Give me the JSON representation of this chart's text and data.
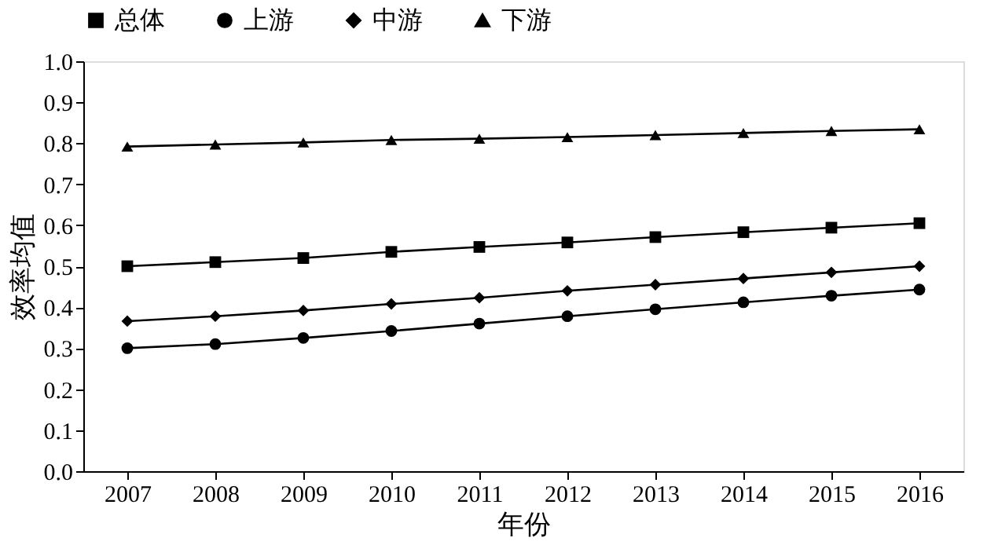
{
  "chart_data": {
    "type": "line",
    "xlabel": "年份",
    "ylabel": "效率均值",
    "categories": [
      "2007",
      "2008",
      "2009",
      "2010",
      "2011",
      "2012",
      "2013",
      "2014",
      "2015",
      "2016"
    ],
    "series": [
      {
        "name": "总体",
        "color": "#000000",
        "marker": "square",
        "values": [
          0.5,
          0.51,
          0.52,
          0.535,
          0.547,
          0.558,
          0.571,
          0.583,
          0.594,
          0.605
        ]
      },
      {
        "name": "上游",
        "color": "#000000",
        "marker": "circle",
        "values": [
          0.3,
          0.31,
          0.325,
          0.342,
          0.36,
          0.378,
          0.395,
          0.412,
          0.428,
          0.443
        ]
      },
      {
        "name": "中游",
        "color": "#000000",
        "marker": "diamond",
        "values": [
          0.366,
          0.378,
          0.392,
          0.408,
          0.423,
          0.44,
          0.455,
          0.47,
          0.485,
          0.5
        ]
      },
      {
        "name": "下游",
        "color": "#000000",
        "marker": "triangle",
        "values": [
          0.792,
          0.797,
          0.802,
          0.808,
          0.811,
          0.815,
          0.82,
          0.825,
          0.83,
          0.834
        ]
      }
    ],
    "ylim": [
      0,
      1
    ],
    "yticks": [
      {
        "value": 0,
        "label": "0.0"
      },
      0.1,
      0.2,
      0.3,
      0.4,
      0.5,
      0.6,
      0.7,
      0.8,
      0.9,
      {
        "value": 1,
        "label": "1.0"
      }
    ],
    "grid": false,
    "legend": "top",
    "line_style": "solid"
  }
}
